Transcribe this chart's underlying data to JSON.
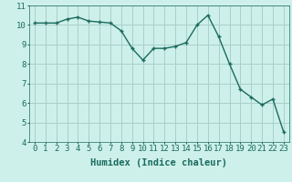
{
  "x": [
    0,
    1,
    2,
    3,
    4,
    5,
    6,
    7,
    8,
    9,
    10,
    11,
    12,
    13,
    14,
    15,
    16,
    17,
    18,
    19,
    20,
    21,
    22,
    23
  ],
  "y": [
    10.1,
    10.1,
    10.1,
    10.3,
    10.4,
    10.2,
    10.15,
    10.1,
    9.7,
    8.8,
    8.2,
    8.8,
    8.8,
    8.9,
    9.1,
    10.0,
    10.5,
    9.4,
    8.0,
    6.7,
    6.3,
    5.9,
    6.2,
    4.5
  ],
  "line_color": "#1a6b5e",
  "marker": "+",
  "marker_size": 3,
  "bg_color": "#cef0ea",
  "grid_color": "#a8cfc8",
  "xlabel": "Humidex (Indice chaleur)",
  "xlim": [
    -0.5,
    23.5
  ],
  "ylim": [
    4,
    11
  ],
  "yticks": [
    4,
    5,
    6,
    7,
    8,
    9,
    10,
    11
  ],
  "xticks": [
    0,
    1,
    2,
    3,
    4,
    5,
    6,
    7,
    8,
    9,
    10,
    11,
    12,
    13,
    14,
    15,
    16,
    17,
    18,
    19,
    20,
    21,
    22,
    23
  ],
  "xlabel_fontsize": 7.5,
  "tick_fontsize": 6.5,
  "line_width": 1.0
}
